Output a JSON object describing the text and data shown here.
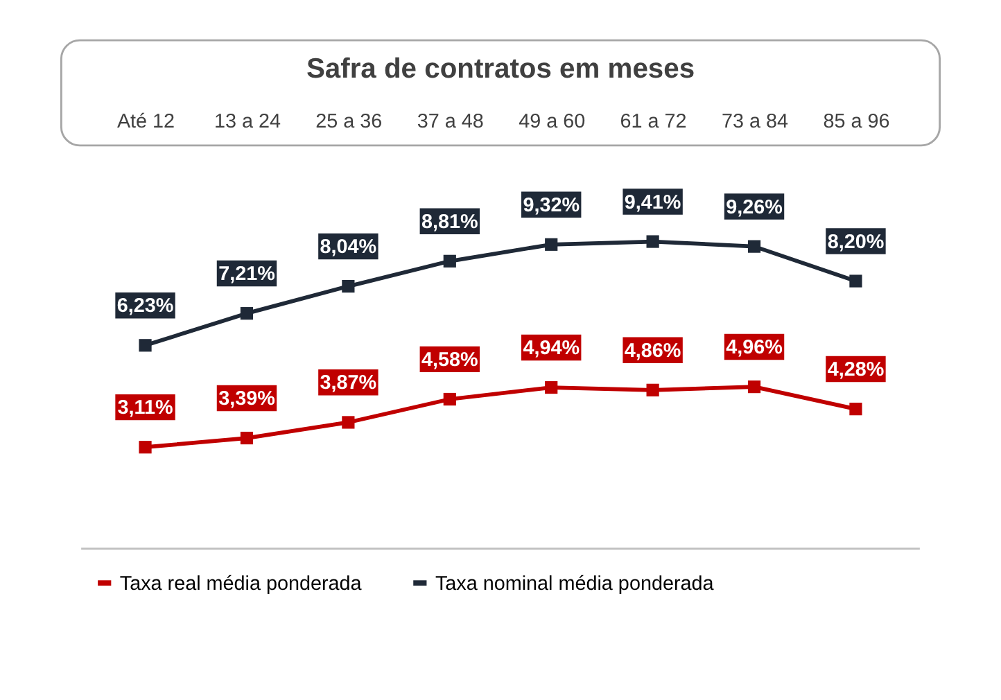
{
  "chart_data": {
    "type": "line",
    "title": "Safra de contratos em meses",
    "categories": [
      "Até 12",
      "13 a 24",
      "25 a 36",
      "37 a 48",
      "49 a 60",
      "61 a 72",
      "73 a 84",
      "85 a 96"
    ],
    "series": [
      {
        "name": "Taxa real média ponderada",
        "color": "#c00000",
        "values": [
          3.11,
          3.39,
          3.87,
          4.58,
          4.94,
          4.86,
          4.96,
          4.28
        ],
        "value_labels": [
          "3,11%",
          "3,39%",
          "3,87%",
          "4,58%",
          "4,94%",
          "4,86%",
          "4,96%",
          "4,28%"
        ]
      },
      {
        "name": "Taxa nominal média ponderada",
        "color": "#1f2937",
        "values": [
          6.23,
          7.21,
          8.04,
          8.81,
          9.32,
          9.41,
          9.26,
          8.2
        ],
        "value_labels": [
          "6,23%",
          "7,21%",
          "8,04%",
          "8,81%",
          "9,32%",
          "9,41%",
          "9,26%",
          "8,20%"
        ]
      }
    ],
    "grid": false,
    "legend": "bottom",
    "marker": "square",
    "line_style": "solid"
  }
}
